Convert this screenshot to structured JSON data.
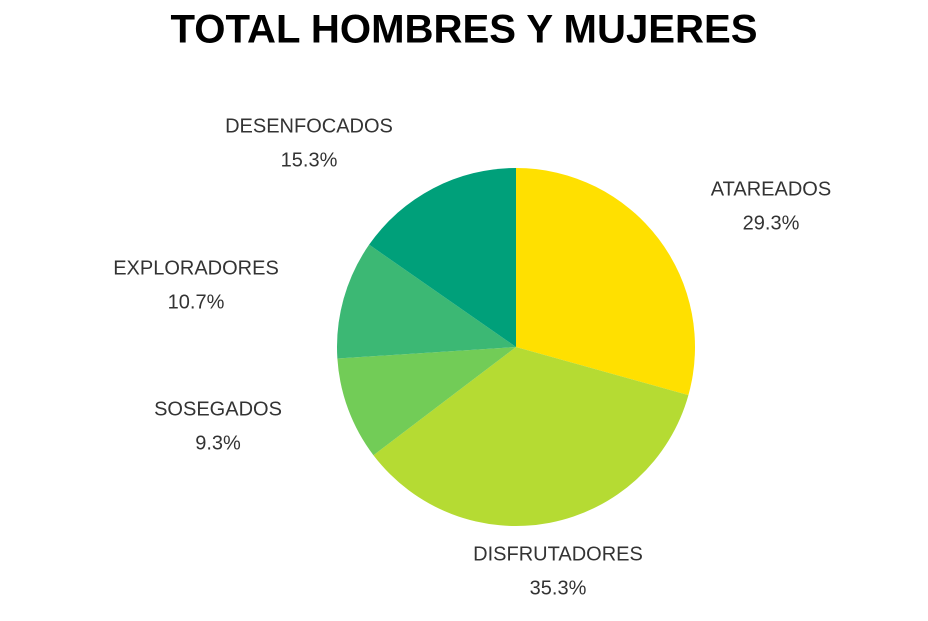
{
  "chart_data": {
    "type": "pie",
    "title": "TOTAL HOMBRES Y MUJERES",
    "categories": [
      "ATAREADOS",
      "DISFRUTADORES",
      "SOSEGADOS",
      "EXPLORADORES",
      "DESENFOCADOS"
    ],
    "values": [
      29.3,
      35.3,
      9.3,
      10.7,
      15.3
    ],
    "value_labels": [
      "29.3%",
      "35.3%",
      "9.3%",
      "10.7%",
      "15.3%"
    ],
    "colors": [
      "#ffe000",
      "#b5db33",
      "#72cc57",
      "#3cb874",
      "#00a07a"
    ]
  }
}
